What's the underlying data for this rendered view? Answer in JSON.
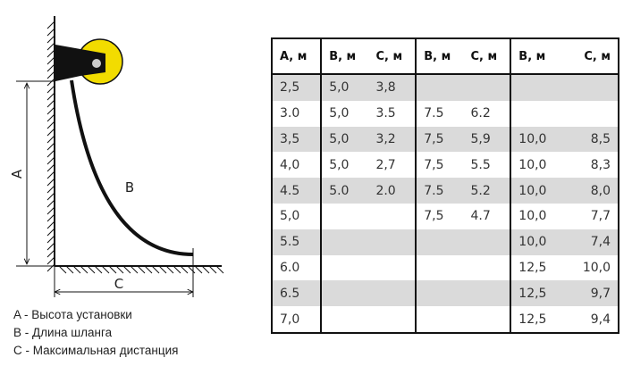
{
  "diagram": {
    "label_a": "A",
    "label_b": "B",
    "label_c": "C",
    "reel_color": "#f2dc00"
  },
  "legend": [
    "A - Высота установки",
    "B - Длина шланга",
    "C - Максимальная дистанция"
  ],
  "table": {
    "headers": [
      "A, м",
      "B, м",
      "C, м",
      "B, м",
      "C, м",
      "B, м",
      "C, м"
    ],
    "rows": [
      [
        "2,5",
        "5,0",
        "3,8",
        "",
        "",
        "",
        ""
      ],
      [
        "3.0",
        "5,0",
        "3.5",
        "7.5",
        "6.2",
        "",
        ""
      ],
      [
        "3,5",
        "5,0",
        "3,2",
        "7,5",
        "5,9",
        "10,0",
        "8,5"
      ],
      [
        "4,0",
        "5,0",
        "2,7",
        "7,5",
        "5.5",
        "10,0",
        "8,3"
      ],
      [
        "4.5",
        "5.0",
        "2.0",
        "7.5",
        "5.2",
        "10,0",
        "8,0"
      ],
      [
        "5,0",
        "",
        "",
        "7,5",
        "4.7",
        "10,0",
        "7,7"
      ],
      [
        "5.5",
        "",
        "",
        "",
        "",
        "10,0",
        "7,4"
      ],
      [
        "6.0",
        "",
        "",
        "",
        "",
        "12,5",
        "10,0"
      ],
      [
        "6.5",
        "",
        "",
        "",
        "",
        "12,5",
        "9,7"
      ],
      [
        "7,0",
        "",
        "",
        "",
        "",
        "12,5",
        "9,4"
      ]
    ]
  }
}
